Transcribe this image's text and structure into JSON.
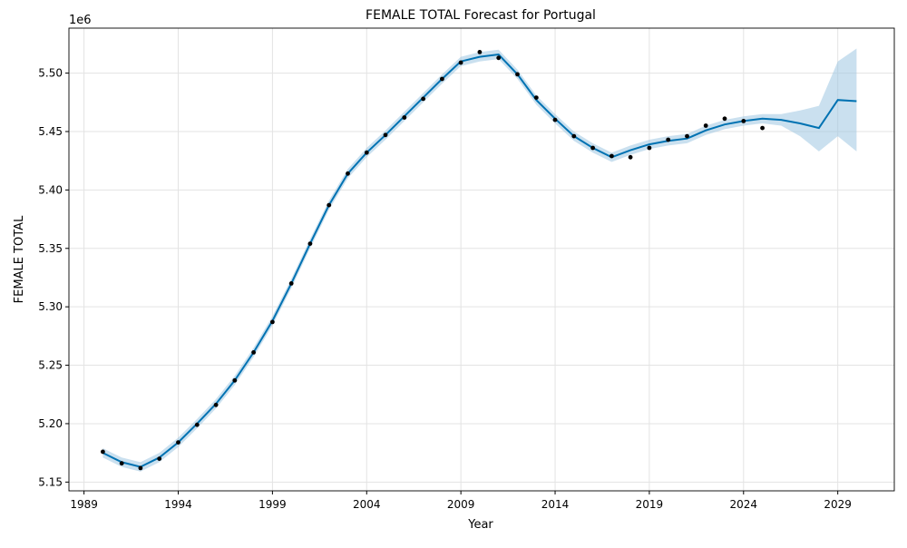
{
  "chart_data": {
    "type": "line",
    "title": "FEMALE TOTAL Forecast for Portugal",
    "xlabel": "Year",
    "ylabel": "FEMALE TOTAL",
    "y_offset_label": "1e6",
    "xlim": [
      1988.2,
      2032.0
    ],
    "ylim": [
      5.1425,
      5.5385
    ],
    "x_ticks": [
      1989,
      1994,
      1999,
      2004,
      2009,
      2014,
      2019,
      2024,
      2029
    ],
    "x_tick_labels": [
      "1989",
      "1994",
      "1999",
      "2004",
      "2009",
      "2014",
      "2019",
      "2024",
      "2029"
    ],
    "y_ticks": [
      5.15,
      5.2,
      5.25,
      5.3,
      5.35,
      5.4,
      5.45,
      5.5
    ],
    "y_tick_labels": [
      "5.15",
      "5.20",
      "5.25",
      "5.30",
      "5.35",
      "5.40",
      "5.45",
      "5.50"
    ],
    "grid": true,
    "colors": {
      "forecast": "#0072B2",
      "interval": "#9ec6e2",
      "observed": "#000000",
      "grid": "#e3e3e3"
    },
    "forecast": {
      "x": [
        1990,
        1991,
        1992,
        1993,
        1994,
        1995,
        1996,
        1997,
        1998,
        1999,
        2000,
        2001,
        2002,
        2003,
        2004,
        2005,
        2006,
        2007,
        2008,
        2009,
        2010,
        2011,
        2012,
        2013,
        2014,
        2015,
        2016,
        2017,
        2018,
        2019,
        2020,
        2021,
        2022,
        2023,
        2024,
        2025,
        2026,
        2027,
        2028,
        2029,
        2030
      ],
      "y": [
        5.175,
        5.167,
        5.163,
        5.171,
        5.184,
        5.2,
        5.217,
        5.237,
        5.261,
        5.288,
        5.32,
        5.354,
        5.387,
        5.414,
        5.432,
        5.447,
        5.463,
        5.479,
        5.495,
        5.51,
        5.514,
        5.516,
        5.499,
        5.477,
        5.461,
        5.446,
        5.436,
        5.428,
        5.434,
        5.439,
        5.442,
        5.444,
        5.451,
        5.456,
        5.459,
        5.461,
        5.46,
        5.457,
        5.453,
        5.477,
        5.476
      ],
      "lower": [
        5.171,
        5.163,
        5.159,
        5.167,
        5.18,
        5.196,
        5.213,
        5.233,
        5.257,
        5.284,
        5.316,
        5.35,
        5.383,
        5.41,
        5.428,
        5.443,
        5.459,
        5.475,
        5.491,
        5.506,
        5.51,
        5.512,
        5.495,
        5.473,
        5.457,
        5.442,
        5.432,
        5.424,
        5.43,
        5.435,
        5.438,
        5.44,
        5.447,
        5.452,
        5.455,
        5.457,
        5.455,
        5.446,
        5.433,
        5.446,
        5.433
      ],
      "upper": [
        5.179,
        5.171,
        5.167,
        5.175,
        5.188,
        5.204,
        5.221,
        5.241,
        5.265,
        5.292,
        5.324,
        5.358,
        5.391,
        5.418,
        5.436,
        5.451,
        5.467,
        5.483,
        5.499,
        5.514,
        5.518,
        5.52,
        5.503,
        5.481,
        5.465,
        5.45,
        5.44,
        5.432,
        5.438,
        5.443,
        5.446,
        5.448,
        5.455,
        5.46,
        5.463,
        5.465,
        5.465,
        5.468,
        5.472,
        5.51,
        5.521
      ]
    },
    "observed": {
      "x": [
        1990,
        1991,
        1992,
        1993,
        1994,
        1995,
        1996,
        1997,
        1998,
        1999,
        2000,
        2001,
        2002,
        2003,
        2004,
        2005,
        2006,
        2007,
        2008,
        2009,
        2010,
        2011,
        2012,
        2013,
        2014,
        2015,
        2016,
        2017,
        2018,
        2019,
        2020,
        2021,
        2022,
        2023,
        2024,
        2025
      ],
      "y": [
        5.176,
        5.166,
        5.162,
        5.17,
        5.184,
        5.199,
        5.216,
        5.237,
        5.261,
        5.287,
        5.32,
        5.354,
        5.387,
        5.414,
        5.432,
        5.447,
        5.462,
        5.478,
        5.495,
        5.509,
        5.518,
        5.513,
        5.499,
        5.479,
        5.46,
        5.446,
        5.436,
        5.429,
        5.428,
        5.436,
        5.443,
        5.446,
        5.455,
        5.461,
        5.459,
        5.453
      ]
    }
  }
}
